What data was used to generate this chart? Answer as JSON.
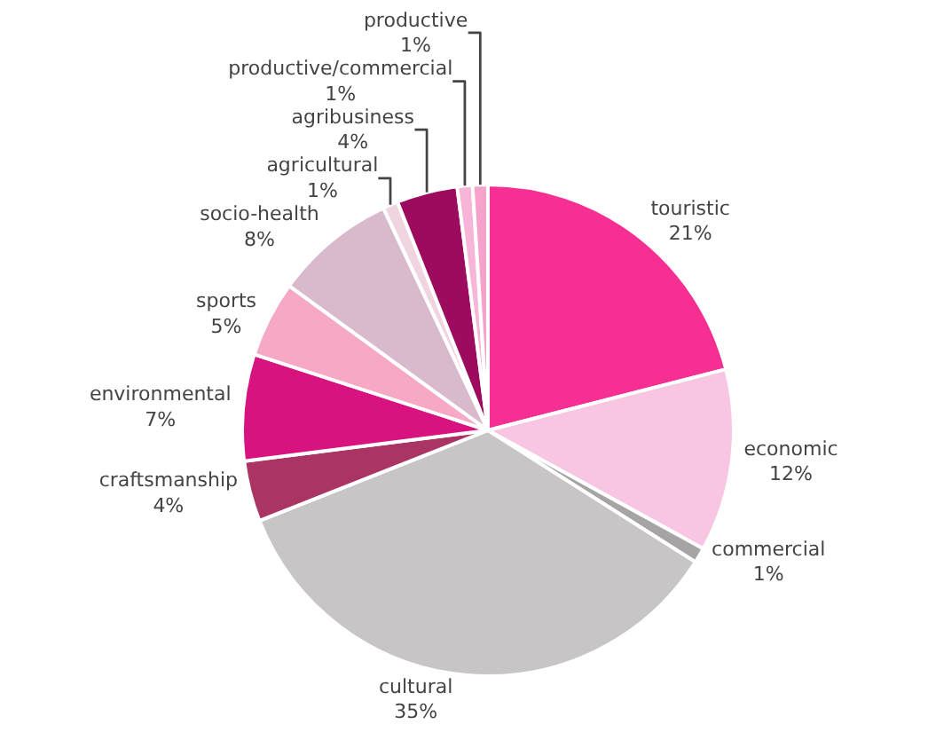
{
  "chart_data": {
    "type": "pie",
    "categories": [
      "touristic",
      "economic",
      "commercial",
      "cultural",
      "craftsmanship",
      "environmental",
      "sports",
      "socio-health",
      "agricultural",
      "agribusiness",
      "productive/commercial",
      "productive"
    ],
    "values": [
      21,
      12,
      1,
      35,
      4,
      7,
      5,
      8,
      1,
      4,
      1,
      1
    ],
    "value_labels": [
      "21%",
      "12%",
      "1%",
      "35%",
      "4%",
      "7%",
      "5%",
      "8%",
      "1%",
      "4%",
      "1%",
      "1%"
    ],
    "colors": [
      "#f72f92",
      "#f8c6e2",
      "#a6a4a5",
      "#c7c5c6",
      "#aa3463",
      "#d8127f",
      "#f6a8c6",
      "#d9b9cc",
      "#f1d4e1",
      "#9c0b5d",
      "#f7b5d7",
      "#f5a3ca"
    ],
    "legend": false
  }
}
